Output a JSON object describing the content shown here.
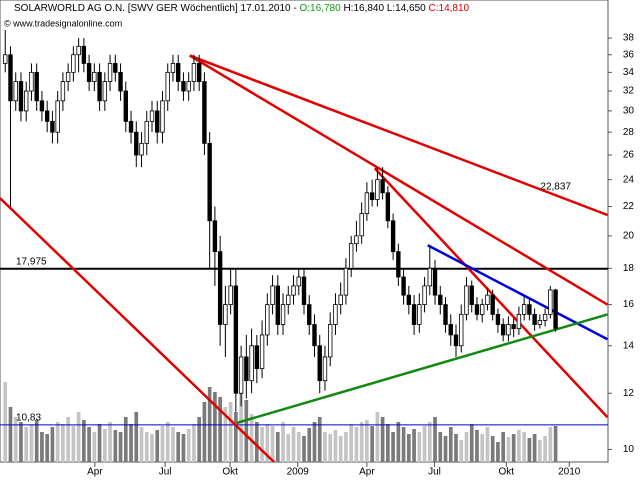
{
  "chart_data": {
    "type": "candlestick",
    "header": {
      "name": "SOLARWORLD AG O.N. [SWV GER  Wöchentlich]",
      "date": "17.01.2010 -",
      "open_label": "O:16,780",
      "high_label": "H:16,840",
      "low_label": "L:14,650",
      "close_label": "C:14,810"
    },
    "copyright": "© www.tradesignalonline.com",
    "log_scale": true,
    "ylim": [
      9.6,
      43
    ],
    "yticks": [
      10,
      12,
      14,
      16,
      18,
      20,
      22,
      24,
      26,
      28,
      30,
      32,
      34,
      36,
      38
    ],
    "xlim": [
      -1,
      115
    ],
    "xticks": [
      {
        "value": 17.1,
        "label": "Apr"
      },
      {
        "value": 30.5,
        "label": "Jul"
      },
      {
        "value": 42.9,
        "label": "Okt"
      },
      {
        "value": 55.8,
        "label": "2009"
      },
      {
        "value": 69,
        "label": "Apr"
      },
      {
        "value": 81.9,
        "label": "Jul"
      },
      {
        "value": 95.6,
        "label": "Okt"
      },
      {
        "value": 107.6,
        "label": "2010"
      }
    ],
    "up_color": "#ffffff",
    "down_color": "#000000",
    "open": [
      35,
      36,
      31,
      33,
      30,
      32,
      34,
      31,
      30,
      29,
      28,
      31,
      33,
      34,
      36,
      37,
      35,
      33,
      34,
      31,
      33,
      35,
      34,
      32,
      29,
      28,
      26,
      27,
      29,
      30,
      28,
      31,
      34,
      35,
      33,
      32,
      33,
      35,
      33,
      27,
      21,
      19,
      15,
      16,
      17,
      12,
      13.5,
      12.5,
      14,
      13,
      14.5,
      16,
      17,
      15,
      16,
      16.5,
      17,
      17.5,
      16,
      15,
      14,
      12.5,
      13.5,
      15,
      16,
      16.5,
      18,
      19.5,
      20,
      21.5,
      23,
      22.5,
      24,
      23,
      21,
      19,
      17.5,
      16.5,
      16,
      15,
      16,
      17,
      18,
      16.5,
      16,
      15,
      14.5,
      14,
      15.5,
      17,
      16,
      15.5,
      16,
      16.5,
      15.5,
      15,
      14.5,
      15,
      14.8,
      15.5,
      16,
      15.5,
      15,
      15.2,
      15.5,
      16.78
    ],
    "high": [
      39,
      37,
      34,
      34,
      33,
      35,
      35,
      32,
      31,
      30,
      32,
      34,
      35,
      37,
      38,
      38,
      36,
      35,
      35,
      34,
      36,
      36,
      35,
      33,
      30,
      29,
      28,
      30,
      31,
      31,
      32,
      35,
      36,
      36,
      34,
      34,
      36,
      36,
      34,
      28,
      22,
      20,
      17,
      18,
      18,
      14,
      14.5,
      14.8,
      14.5,
      15.2,
      16.6,
      17.6,
      17.6,
      16.6,
      17,
      17.6,
      18,
      18,
      16.5,
      15.5,
      14.5,
      14,
      15.6,
      16.6,
      17.2,
      18.6,
      20,
      21,
      22.3,
      23.8,
      24,
      25,
      25,
      23.5,
      21.5,
      19.5,
      18,
      17,
      16.5,
      16.6,
      17.5,
      19.4,
      18.5,
      17,
      16.4,
      15.5,
      15,
      16,
      17.5,
      17.3,
      16.4,
      16.3,
      16.9,
      16.8,
      15.8,
      15.3,
      15.4,
      15.3,
      15.9,
      16.4,
      16.3,
      15.8,
      15.5,
      15.8,
      17,
      16.84
    ],
    "low": [
      34,
      22,
      30,
      29,
      29,
      31,
      30,
      29,
      28,
      27,
      27,
      30,
      32,
      33,
      34,
      34,
      32,
      32,
      30,
      30,
      32,
      33,
      31,
      28,
      27,
      25,
      25,
      26,
      28,
      27,
      27,
      30,
      33,
      32,
      31,
      31,
      32,
      32,
      26,
      18,
      17,
      14,
      13.5,
      15.5,
      11.3,
      11.5,
      11.8,
      12,
      12.4,
      12.6,
      14,
      15.5,
      14.5,
      14.5,
      15.5,
      16,
      16.5,
      15.5,
      14.5,
      13.5,
      12,
      12.1,
      13.1,
      14.5,
      15.5,
      16,
      17.5,
      19,
      19.5,
      21,
      22,
      22,
      22.5,
      20.5,
      18.5,
      17,
      16,
      15.5,
      14.5,
      14.6,
      15.6,
      16.5,
      16,
      15.5,
      14.6,
      14,
      13.5,
      13.7,
      15.2,
      15.6,
      15.2,
      15.1,
      15.7,
      15.2,
      14.6,
      14.2,
      14.2,
      14.4,
      14.5,
      15.2,
      15.2,
      14.7,
      14.8,
      14.9,
      15.3,
      14.65
    ],
    "close": [
      36,
      31,
      33,
      30,
      32,
      34,
      31,
      30,
      29,
      28,
      31,
      33,
      34,
      36,
      37,
      35,
      33,
      34,
      31,
      33,
      35,
      34,
      32,
      29,
      28,
      26,
      27,
      29,
      30,
      28,
      31,
      34,
      35,
      33,
      32,
      33,
      35,
      33,
      27,
      21,
      19,
      15,
      16,
      17,
      12,
      13.5,
      12.5,
      14,
      13,
      14.5,
      16,
      17,
      15,
      16,
      16.5,
      17,
      17.5,
      16,
      15,
      14,
      12.5,
      13.5,
      15,
      16,
      16.5,
      18,
      19.5,
      20,
      21.5,
      23,
      22.5,
      24,
      23,
      21,
      19,
      17.5,
      16.5,
      16,
      15,
      16,
      17,
      18,
      16.5,
      16,
      15,
      14.5,
      14,
      15.5,
      17,
      16,
      15.5,
      16,
      16.5,
      15.5,
      15,
      14.5,
      15,
      14.8,
      15.5,
      16,
      15.5,
      15,
      15.2,
      15.5,
      16.78,
      14.81
    ],
    "volume": [
      80,
      55,
      45,
      40,
      35,
      38,
      42,
      30,
      28,
      35,
      40,
      38,
      45,
      36,
      50,
      42,
      35,
      30,
      38,
      33,
      40,
      32,
      30,
      45,
      38,
      50,
      35,
      30,
      28,
      32,
      36,
      40,
      35,
      30,
      28,
      33,
      38,
      45,
      60,
      75,
      70,
      65,
      55,
      60,
      50,
      78,
      62,
      48,
      40,
      35,
      38,
      36,
      30,
      40,
      28,
      35,
      30,
      26,
      34,
      40,
      45,
      30,
      28,
      32,
      26,
      30,
      38,
      35,
      40,
      42,
      36,
      50,
      45,
      38,
      30,
      40,
      35,
      28,
      33,
      30,
      36,
      40,
      45,
      30,
      26,
      35,
      28,
      22,
      30,
      38,
      32,
      28,
      35,
      26,
      20,
      30,
      25,
      28,
      32,
      30,
      24,
      28,
      22,
      26,
      35,
      36
    ],
    "vlim": [
      0,
      100
    ],
    "trendlines": [
      {
        "color": "#e00000",
        "x": [
          -1,
          51.4
        ],
        "y": [
          22.6,
          9.58
        ]
      },
      {
        "color": "#e00000",
        "x": [
          35.2,
          114.9
        ],
        "y": [
          35.9,
          21.4
        ],
        "label": "22,837"
      },
      {
        "color": "#e00000",
        "x": [
          35.2,
          114.9
        ],
        "y": [
          35.9,
          16.0
        ]
      },
      {
        "color": "#e00000",
        "x": [
          70.5,
          114.9
        ],
        "y": [
          24.9,
          11.1
        ]
      },
      {
        "color": "#0000dd",
        "x": [
          80.6,
          114.9
        ],
        "y": [
          19.4,
          14.3
        ]
      },
      {
        "color": "#118811",
        "x": [
          44.2,
          114.9
        ],
        "y": [
          10.9,
          15.5
        ]
      }
    ],
    "levels": [
      {
        "value": 17.975,
        "label": "17,975",
        "color": "#000000"
      },
      {
        "value": 10.83,
        "label": "10,83",
        "color": "#0000cc"
      }
    ]
  }
}
